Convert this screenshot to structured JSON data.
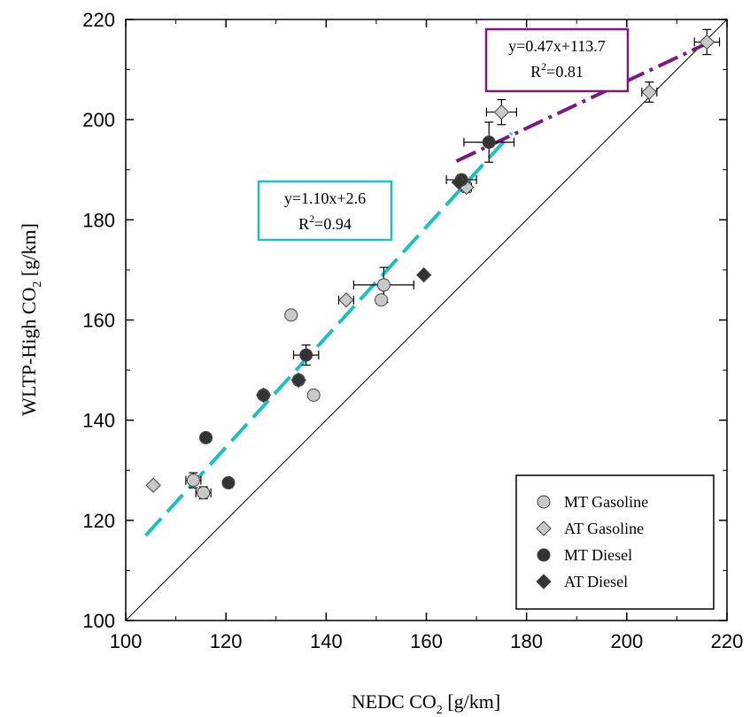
{
  "chart_data": {
    "type": "scatter",
    "title": "",
    "xlabel": "NEDC CO",
    "xlabel_sub": "2",
    "xlabel_unit": " [g/km]",
    "ylabel": "WLTP-High CO",
    "ylabel_sub": "2",
    "ylabel_unit": " [g/km]",
    "xlim": [
      100,
      220
    ],
    "ylim": [
      100,
      220
    ],
    "xticks": [
      "100",
      "120",
      "140",
      "160",
      "180",
      "200",
      "220"
    ],
    "yticks": [
      "100",
      "120",
      "140",
      "160",
      "180",
      "200",
      "220"
    ],
    "grid": false,
    "legend_position": "bottom-right",
    "series": [
      {
        "name": "MT Gasoline",
        "marker": "circle",
        "color": "#c8c8c8",
        "points": [
          {
            "x": 113.5,
            "y": 128,
            "xerr": 1.5,
            "yerr": 1.5
          },
          {
            "x": 115.5,
            "y": 125.5,
            "xerr": 1.5,
            "yerr": 1.2
          },
          {
            "x": 133,
            "y": 161,
            "xerr": 0,
            "yerr": 0
          },
          {
            "x": 137.5,
            "y": 145,
            "xerr": 0,
            "yerr": 0
          },
          {
            "x": 151.5,
            "y": 167,
            "xerr": 6,
            "yerr": 3.5
          },
          {
            "x": 151,
            "y": 164,
            "xerr": 0,
            "yerr": 0
          }
        ]
      },
      {
        "name": "AT Gasoline",
        "marker": "diamond",
        "color": "#c8c8c8",
        "points": [
          {
            "x": 105.5,
            "y": 127,
            "xerr": 0,
            "yerr": 0
          },
          {
            "x": 144,
            "y": 164,
            "xerr": 1.5,
            "yerr": 0.5
          },
          {
            "x": 168,
            "y": 186.5,
            "xerr": 1,
            "yerr": 1
          },
          {
            "x": 175,
            "y": 201.5,
            "xerr": 3,
            "yerr": 2.5
          },
          {
            "x": 204.5,
            "y": 205.5,
            "xerr": 1.5,
            "yerr": 2
          },
          {
            "x": 216,
            "y": 215.5,
            "xerr": 2.5,
            "yerr": 2.5
          }
        ]
      },
      {
        "name": "MT Diesel",
        "marker": "circle",
        "color": "#333333",
        "points": [
          {
            "x": 116,
            "y": 136.5,
            "xerr": 0,
            "yerr": 0
          },
          {
            "x": 120.5,
            "y": 127.5,
            "xerr": 0,
            "yerr": 0
          },
          {
            "x": 127.5,
            "y": 145,
            "xerr": 0,
            "yerr": 0
          },
          {
            "x": 134.5,
            "y": 148,
            "xerr": 0,
            "yerr": 0
          },
          {
            "x": 136,
            "y": 153,
            "xerr": 2.5,
            "yerr": 2
          },
          {
            "x": 167,
            "y": 188,
            "xerr": 3,
            "yerr": 1
          },
          {
            "x": 172.5,
            "y": 195.5,
            "xerr": 5,
            "yerr": 4
          }
        ]
      },
      {
        "name": "AT Diesel",
        "marker": "diamond",
        "color": "#333333",
        "points": [
          {
            "x": 127.5,
            "y": 145,
            "xerr": 0,
            "yerr": 0
          },
          {
            "x": 134.5,
            "y": 148,
            "xerr": 0,
            "yerr": 0
          },
          {
            "x": 159.5,
            "y": 169,
            "xerr": 0,
            "yerr": 0
          },
          {
            "x": 166.5,
            "y": 187.5,
            "xerr": 0,
            "yerr": 0
          }
        ]
      }
    ],
    "fits": [
      {
        "equation": "y=1.10x+2.6",
        "r2_prefix": "R",
        "r2_sup": "2",
        "r2_value": "=0.94",
        "slope": 1.1,
        "intercept": 2.6,
        "x_range": [
          104,
          177
        ],
        "color": "#1fbfbf",
        "style": "dashed"
      },
      {
        "equation": "y=0.47x+113.7",
        "r2_prefix": "R",
        "r2_sup": "2",
        "r2_value": "=0.81",
        "slope": 0.47,
        "intercept": 113.7,
        "x_range": [
          166,
          216
        ],
        "color": "#7a1a80",
        "style": "dash-dot"
      }
    ],
    "reference_line": {
      "type": "y=x",
      "color": "#000000"
    }
  }
}
